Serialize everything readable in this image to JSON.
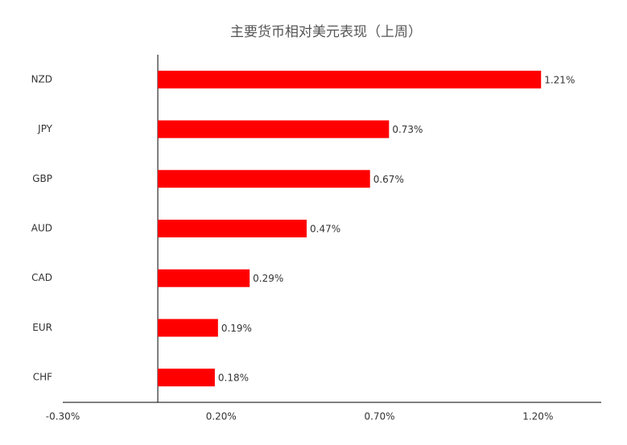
{
  "chart_data": {
    "type": "bar",
    "orientation": "horizontal",
    "title": "主要货币相对美元表现（上周）",
    "categories": [
      "NZD",
      "JPY",
      "GBP",
      "AUD",
      "CAD",
      "EUR",
      "CHF"
    ],
    "values": [
      1.21,
      0.73,
      0.67,
      0.47,
      0.29,
      0.19,
      0.18
    ],
    "value_labels": [
      "1.21%",
      "0.73%",
      "0.67%",
      "0.47%",
      "0.29%",
      "0.19%",
      "0.18%"
    ],
    "color": "#ff0000",
    "xlim": [
      -0.3,
      1.4
    ],
    "xticks": [
      {
        "value": -0.3,
        "label": "-0.30%"
      },
      {
        "value": 0.2,
        "label": "0.20%"
      },
      {
        "value": 0.7,
        "label": "0.70%"
      },
      {
        "value": 1.2,
        "label": "1.20%"
      }
    ],
    "grid": false
  }
}
